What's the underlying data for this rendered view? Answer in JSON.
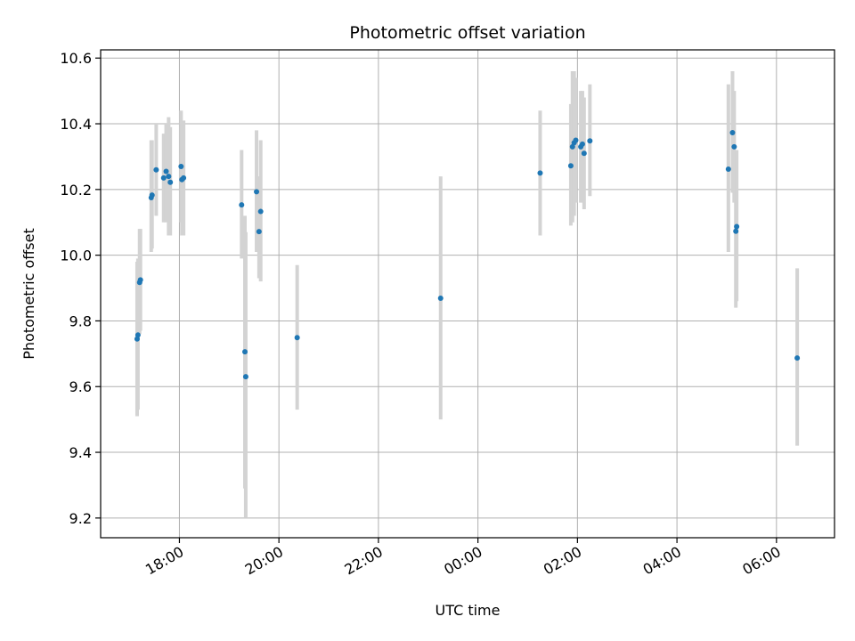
{
  "chart_data": {
    "type": "scatter",
    "title": "Photometric offset variation",
    "xlabel": "UTC time",
    "ylabel": "Photometric offset",
    "xlim": [
      "2000-01-01T16:25:00",
      "2000-01-02T07:10:00"
    ],
    "ylim": [
      9.14,
      10.625
    ],
    "grid": true,
    "colors": {
      "points": "#1f77b4",
      "errorbars": "#d3d3d3",
      "grid": "#b0b0b0"
    },
    "x_ticks": [
      {
        "t": "2000-01-01T18:00:00",
        "label": "18:00"
      },
      {
        "t": "2000-01-01T20:00:00",
        "label": "20:00"
      },
      {
        "t": "2000-01-01T22:00:00",
        "label": "22:00"
      },
      {
        "t": "2000-01-02T00:00:00",
        "label": "00:00"
      },
      {
        "t": "2000-01-02T02:00:00",
        "label": "02:00"
      },
      {
        "t": "2000-01-02T04:00:00",
        "label": "04:00"
      },
      {
        "t": "2000-01-02T06:00:00",
        "label": "06:00"
      }
    ],
    "y_ticks": [
      {
        "v": 9.2,
        "label": "9.2"
      },
      {
        "v": 9.4,
        "label": "9.4"
      },
      {
        "v": 9.6,
        "label": "9.6"
      },
      {
        "v": 9.8,
        "label": "9.8"
      },
      {
        "v": 10.0,
        "label": "10.0"
      },
      {
        "v": 10.2,
        "label": "10.2"
      },
      {
        "v": 10.4,
        "label": "10.4"
      },
      {
        "v": 10.6,
        "label": "10.6"
      }
    ],
    "points": [
      {
        "t": "2000-01-01T17:09:00",
        "y": 9.745,
        "lo": 9.51,
        "hi": 9.98
      },
      {
        "t": "2000-01-01T17:10:00",
        "y": 9.757,
        "lo": 9.53,
        "hi": 9.99
      },
      {
        "t": "2000-01-01T17:12:00",
        "y": 9.917,
        "lo": 9.76,
        "hi": 10.08
      },
      {
        "t": "2000-01-01T17:13:00",
        "y": 9.925,
        "lo": 9.77,
        "hi": 10.08
      },
      {
        "t": "2000-01-01T17:26:00",
        "y": 10.175,
        "lo": 10.01,
        "hi": 10.35
      },
      {
        "t": "2000-01-01T17:27:00",
        "y": 10.183,
        "lo": 10.02,
        "hi": 10.35
      },
      {
        "t": "2000-01-01T17:32:00",
        "y": 10.26,
        "lo": 10.12,
        "hi": 10.4
      },
      {
        "t": "2000-01-01T17:41:00",
        "y": 10.235,
        "lo": 10.1,
        "hi": 10.37
      },
      {
        "t": "2000-01-01T17:44:00",
        "y": 10.255,
        "lo": 10.1,
        "hi": 10.4
      },
      {
        "t": "2000-01-01T17:47:00",
        "y": 10.24,
        "lo": 10.06,
        "hi": 10.42
      },
      {
        "t": "2000-01-01T17:49:00",
        "y": 10.222,
        "lo": 10.06,
        "hi": 10.39
      },
      {
        "t": "2000-01-01T18:02:00",
        "y": 10.27,
        "lo": 10.1,
        "hi": 10.44
      },
      {
        "t": "2000-01-01T18:03:00",
        "y": 10.23,
        "lo": 10.06,
        "hi": 10.4
      },
      {
        "t": "2000-01-01T18:05:00",
        "y": 10.235,
        "lo": 10.06,
        "hi": 10.41
      },
      {
        "t": "2000-01-01T19:15:00",
        "y": 10.153,
        "lo": 9.99,
        "hi": 10.32
      },
      {
        "t": "2000-01-01T19:19:00",
        "y": 9.706,
        "lo": 9.29,
        "hi": 10.12
      },
      {
        "t": "2000-01-01T19:20:00",
        "y": 9.63,
        "lo": 9.2,
        "hi": 10.07
      },
      {
        "t": "2000-01-01T19:33:00",
        "y": 10.193,
        "lo": 10.01,
        "hi": 10.38
      },
      {
        "t": "2000-01-01T19:36:00",
        "y": 10.072,
        "lo": 9.93,
        "hi": 10.24
      },
      {
        "t": "2000-01-01T19:38:00",
        "y": 10.133,
        "lo": 9.92,
        "hi": 10.35
      },
      {
        "t": "2000-01-01T20:22:00",
        "y": 9.749,
        "lo": 9.53,
        "hi": 9.97
      },
      {
        "t": "2000-01-01T23:15:00",
        "y": 9.869,
        "lo": 9.5,
        "hi": 10.24
      },
      {
        "t": "2000-01-02T01:15:00",
        "y": 10.25,
        "lo": 10.06,
        "hi": 10.44
      },
      {
        "t": "2000-01-02T01:52:00",
        "y": 10.272,
        "lo": 10.09,
        "hi": 10.46
      },
      {
        "t": "2000-01-02T01:54:00",
        "y": 10.33,
        "lo": 10.1,
        "hi": 10.56
      },
      {
        "t": "2000-01-02T01:56:00",
        "y": 10.342,
        "lo": 10.12,
        "hi": 10.56
      },
      {
        "t": "2000-01-02T01:58:00",
        "y": 10.35,
        "lo": 10.16,
        "hi": 10.54
      },
      {
        "t": "2000-01-02T02:04:00",
        "y": 10.33,
        "lo": 10.16,
        "hi": 10.5
      },
      {
        "t": "2000-01-02T02:06:00",
        "y": 10.338,
        "lo": 10.18,
        "hi": 10.5
      },
      {
        "t": "2000-01-02T02:08:00",
        "y": 10.31,
        "lo": 10.14,
        "hi": 10.48
      },
      {
        "t": "2000-01-02T02:15:00",
        "y": 10.348,
        "lo": 10.18,
        "hi": 10.52
      },
      {
        "t": "2000-01-02T05:02:00",
        "y": 10.262,
        "lo": 10.01,
        "hi": 10.52
      },
      {
        "t": "2000-01-02T05:07:00",
        "y": 10.373,
        "lo": 10.19,
        "hi": 10.56
      },
      {
        "t": "2000-01-02T05:09:00",
        "y": 10.33,
        "lo": 10.16,
        "hi": 10.5
      },
      {
        "t": "2000-01-02T05:11:00",
        "y": 10.073,
        "lo": 9.84,
        "hi": 10.32
      },
      {
        "t": "2000-01-02T05:12:00",
        "y": 10.087,
        "lo": 9.86,
        "hi": 10.32
      },
      {
        "t": "2000-01-02T06:25:00",
        "y": 9.687,
        "lo": 9.42,
        "hi": 9.96
      }
    ]
  }
}
